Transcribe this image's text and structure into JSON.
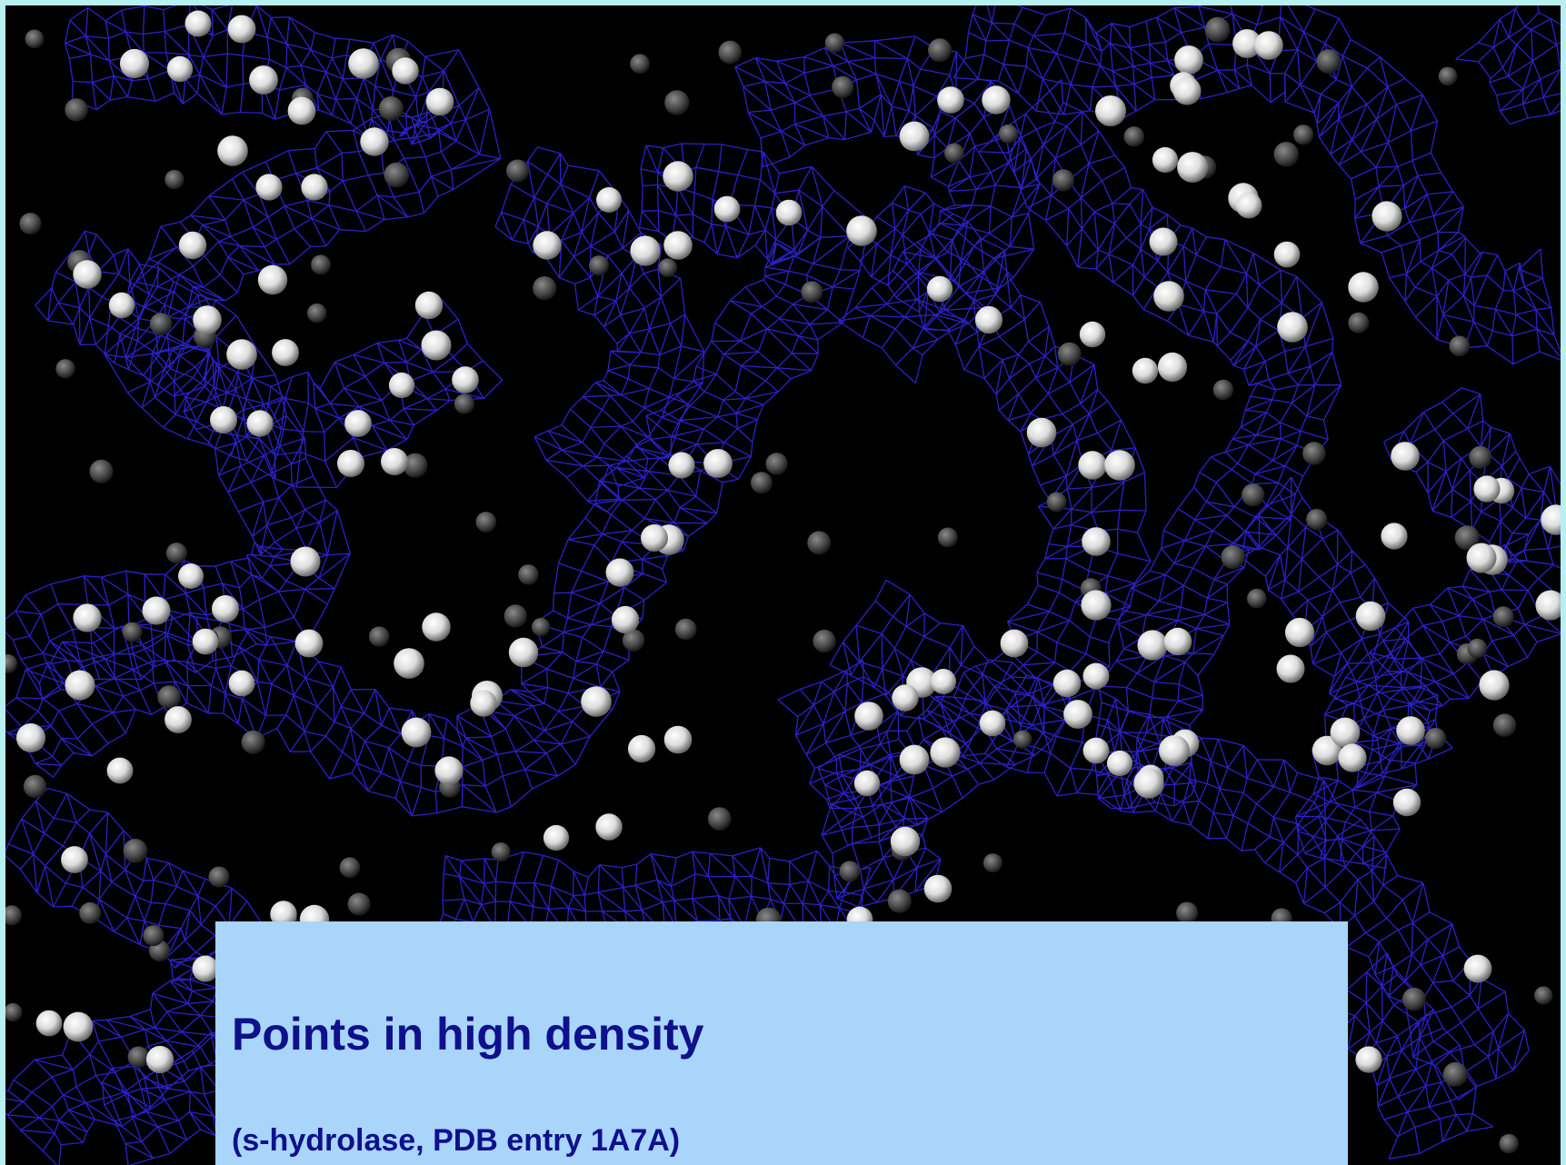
{
  "caption": {
    "title": "Points in high density",
    "subtitle": "(s-hydrolase, PDB entry 1A7A)"
  },
  "image": {
    "kind": "electron-density-map",
    "mesh_color": "#2a22c8",
    "atom_color": "#f0f0f0",
    "background_color": "#000000",
    "frame_color": "#b8f0f2",
    "caption_background": "#aad5fb",
    "caption_text_color": "#0e108c"
  }
}
